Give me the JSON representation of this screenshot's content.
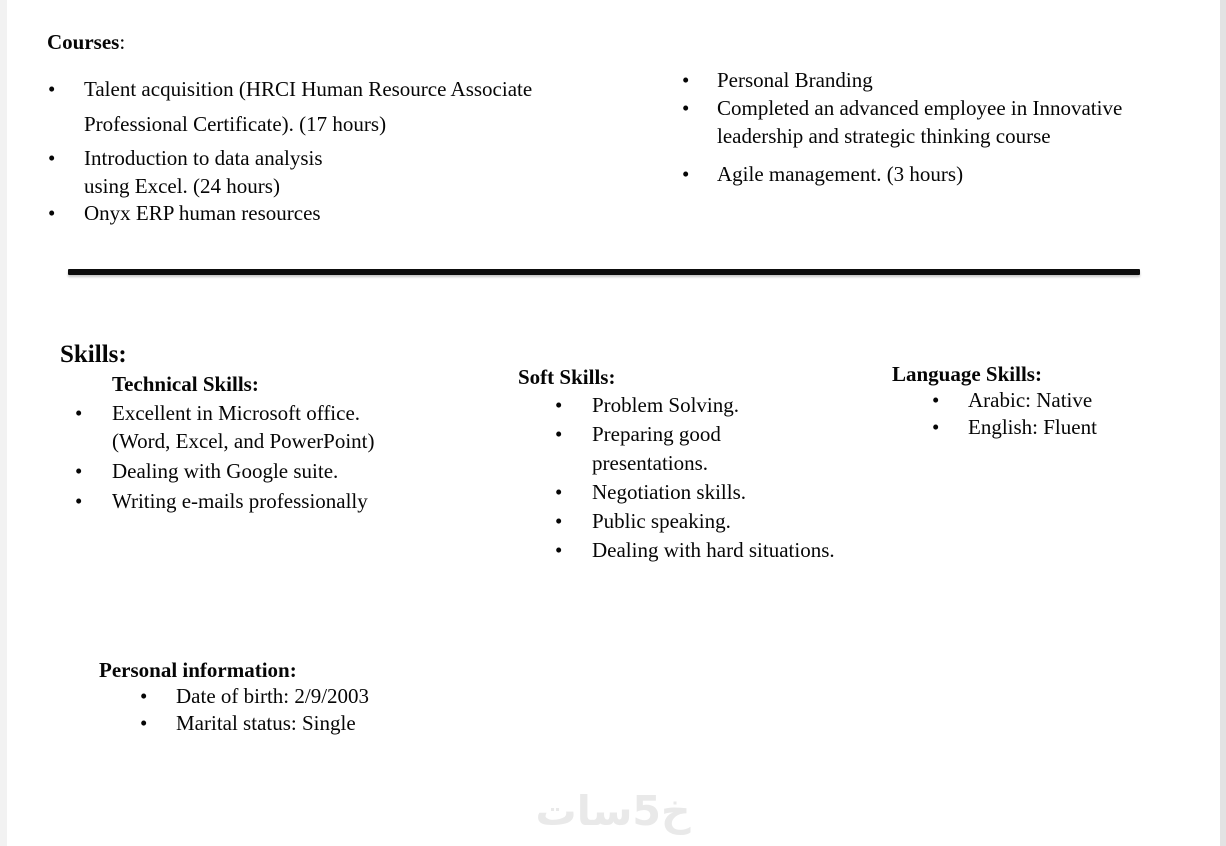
{
  "courses": {
    "heading": "Courses",
    "heading_colon": ":",
    "left": [
      {
        "lines": [
          "Talent acquisition (HRCI Human Resource Associate",
          "Professional Certificate). (17 hours)"
        ]
      },
      {
        "lines": [
          "Introduction to data analysis",
          "using Excel. (24 hours)"
        ]
      },
      {
        "lines": [
          "Onyx ERP human resources"
        ]
      }
    ],
    "right": [
      {
        "lines": [
          "Personal Branding"
        ]
      },
      {
        "lines": [
          "Completed an advanced employee in Innovative",
          "leadership and strategic thinking course"
        ]
      },
      {
        "lines": [
          "Agile management. (3 hours)"
        ]
      }
    ]
  },
  "skills": {
    "heading": "Skills:",
    "technical": {
      "heading": "Technical Skills:",
      "items": [
        {
          "lines": [
            "Excellent in Microsoft office.",
            "(Word, Excel, and PowerPoint)"
          ]
        },
        {
          "lines": [
            "Dealing with Google suite."
          ]
        },
        {
          "lines": [
            "Writing e-mails professionally"
          ]
        }
      ]
    },
    "soft": {
      "heading": "Soft Skills:",
      "items": [
        {
          "lines": [
            "Problem Solving."
          ]
        },
        {
          "lines": [
            "Preparing good",
            "presentations."
          ]
        },
        {
          "lines": [
            "Negotiation skills."
          ]
        },
        {
          "lines": [
            "Public speaking."
          ]
        },
        {
          "lines": [
            "Dealing with hard situations."
          ]
        }
      ]
    },
    "language": {
      "heading": "Language Skills:",
      "items": [
        {
          "lines": [
            "Arabic: Native"
          ]
        },
        {
          "lines": [
            "English: Fluent"
          ]
        }
      ]
    }
  },
  "personal": {
    "heading": "Personal information:",
    "items": [
      {
        "lines": [
          "Date of birth: 2/9/2003"
        ]
      },
      {
        "lines": [
          "Marital status: Single"
        ]
      }
    ]
  },
  "watermark": {
    "text": "خ5سات"
  },
  "colors": {
    "text": "#060606",
    "divider": "#0d0d0d",
    "watermark_gray": "#e9e9e9",
    "page_edge_gray": "#e3e3e3",
    "background": "#ffffff"
  }
}
